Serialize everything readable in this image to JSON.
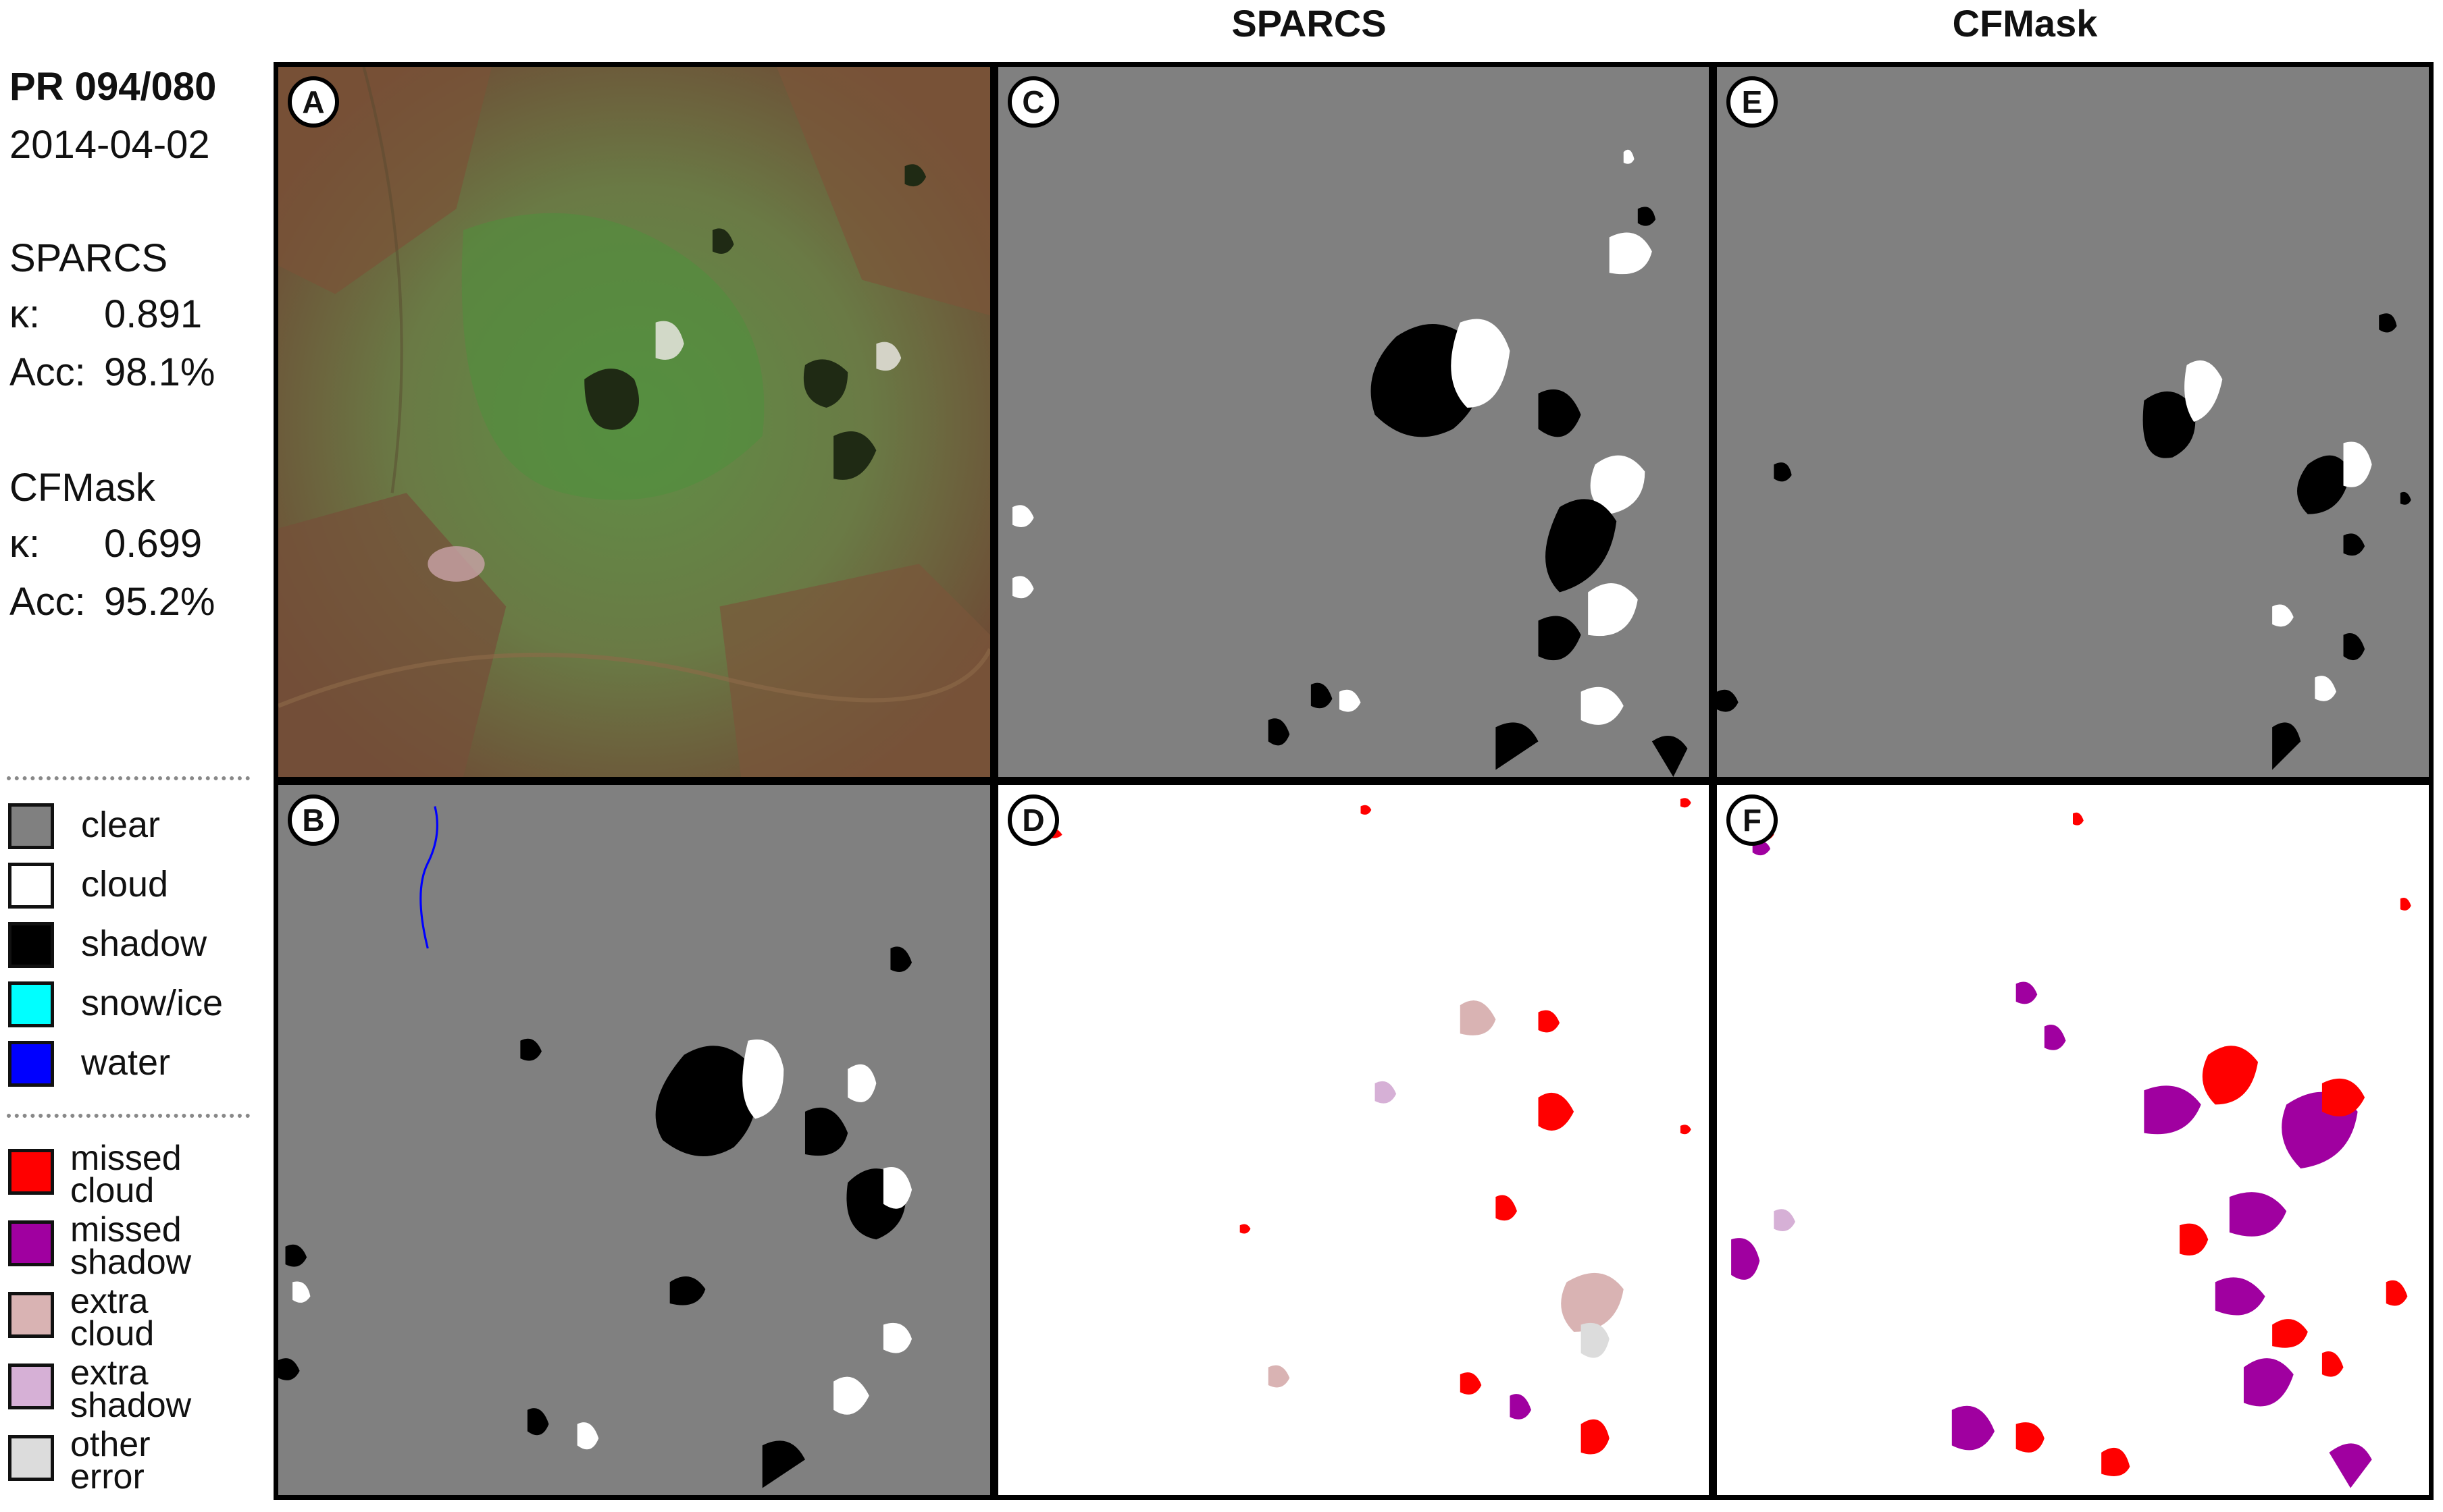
{
  "scene": {
    "path_row": "PR 094/080",
    "date": "2014-04-02"
  },
  "scores": [
    {
      "method": "SPARCS",
      "kappa_label": "κ:",
      "kappa": "0.891",
      "acc_label": "Acc:",
      "acc": "98.1%"
    },
    {
      "method": "CFMask",
      "kappa_label": "κ:",
      "kappa": "0.699",
      "acc_label": "Acc:",
      "acc": "95.2%"
    }
  ],
  "column_titles": {
    "sparcs": "SPARCS",
    "cfmask": "CFMask"
  },
  "legend_classes": [
    {
      "label": "clear",
      "color": "#808080"
    },
    {
      "label": "cloud",
      "color": "#ffffff"
    },
    {
      "label": "shadow",
      "color": "#000000"
    },
    {
      "label": "snow/ice",
      "color": "#00ffff"
    },
    {
      "label": "water",
      "color": "#0000ff"
    }
  ],
  "legend_errors": [
    {
      "line1": "missed",
      "line2": "cloud",
      "color": "#ff0000"
    },
    {
      "line1": "missed",
      "line2": "shadow",
      "color": "#a000a0"
    },
    {
      "line1": "extra",
      "line2": "cloud",
      "color": "#d9b3b3"
    },
    {
      "line1": "extra",
      "line2": "shadow",
      "color": "#d6b0d6"
    },
    {
      "line1": "other",
      "line2": "error",
      "color": "#dcdcdc"
    }
  ],
  "panels": [
    {
      "id": "A",
      "content": "satellite-image"
    },
    {
      "id": "B",
      "content": "reference-mask"
    },
    {
      "id": "C",
      "content": "sparcs-mask"
    },
    {
      "id": "D",
      "content": "sparcs-error-map"
    },
    {
      "id": "E",
      "content": "cfmask-mask"
    },
    {
      "id": "F",
      "content": "cfmask-error-map"
    }
  ]
}
